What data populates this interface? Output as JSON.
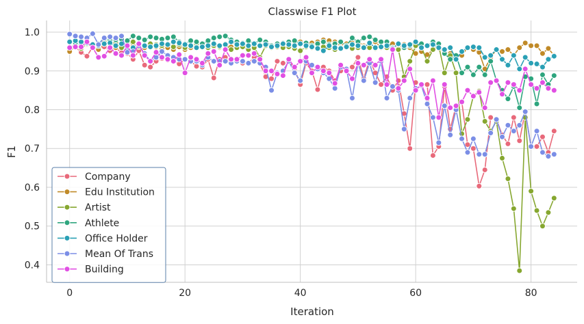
{
  "chart_data": {
    "type": "line",
    "title": "Classwise F1 Plot",
    "xlabel": "Iteration",
    "ylabel": "F1",
    "xlim": [
      -4,
      88
    ],
    "ylim": [
      0.355,
      1.03
    ],
    "xticks": [
      0,
      20,
      40,
      60,
      80
    ],
    "yticks": [
      0.4,
      0.5,
      0.6,
      0.7,
      0.8,
      0.9,
      1.0
    ],
    "grid": true,
    "legend_position": "lower-left",
    "x": [
      0,
      1,
      2,
      3,
      4,
      5,
      6,
      7,
      8,
      9,
      10,
      11,
      12,
      13,
      14,
      15,
      16,
      17,
      18,
      19,
      20,
      21,
      22,
      23,
      24,
      25,
      26,
      27,
      28,
      29,
      30,
      31,
      32,
      33,
      34,
      35,
      36,
      37,
      38,
      39,
      40,
      41,
      42,
      43,
      44,
      45,
      46,
      47,
      48,
      49,
      50,
      51,
      52,
      53,
      54,
      55,
      56,
      57,
      58,
      59,
      60,
      61,
      62,
      63,
      64,
      65,
      66,
      67,
      68,
      69,
      70,
      71,
      72,
      73,
      74,
      75,
      76,
      77,
      78,
      79,
      80,
      81,
      82,
      83,
      84
    ],
    "series": [
      {
        "name": "Company",
        "color": "#e8697a",
        "values": [
          0.958,
          0.962,
          0.948,
          0.938,
          0.962,
          0.956,
          0.962,
          0.952,
          0.96,
          0.947,
          0.945,
          0.93,
          0.952,
          0.915,
          0.91,
          0.925,
          0.932,
          0.928,
          0.925,
          0.918,
          0.93,
          0.925,
          0.912,
          0.91,
          0.93,
          0.882,
          0.93,
          0.935,
          0.92,
          0.925,
          0.92,
          0.92,
          0.935,
          0.92,
          0.885,
          0.88,
          0.925,
          0.92,
          0.925,
          0.905,
          0.865,
          0.92,
          0.9,
          0.852,
          0.91,
          0.9,
          0.875,
          0.9,
          0.905,
          0.91,
          0.935,
          0.88,
          0.93,
          0.895,
          0.865,
          0.885,
          0.85,
          0.875,
          0.79,
          0.7,
          0.87,
          0.865,
          0.865,
          0.682,
          0.705,
          0.86,
          0.75,
          0.81,
          0.82,
          0.71,
          0.7,
          0.603,
          0.645,
          0.78,
          0.775,
          0.735,
          0.712,
          0.78,
          0.72,
          0.795,
          0.705,
          0.705,
          0.73,
          0.69,
          0.745
        ]
      },
      {
        "name": "Edu Institution",
        "color": "#c08a28",
        "values": [
          0.95,
          0.965,
          0.96,
          0.968,
          0.962,
          0.955,
          0.97,
          0.965,
          0.96,
          0.968,
          0.958,
          0.965,
          0.962,
          0.96,
          0.965,
          0.962,
          0.958,
          0.96,
          0.955,
          0.962,
          0.955,
          0.96,
          0.975,
          0.965,
          0.968,
          0.962,
          0.96,
          0.97,
          0.962,
          0.965,
          0.968,
          0.962,
          0.97,
          0.965,
          0.972,
          0.96,
          0.968,
          0.965,
          0.972,
          0.968,
          0.975,
          0.968,
          0.972,
          0.975,
          0.98,
          0.978,
          0.975,
          0.968,
          0.97,
          0.972,
          0.975,
          0.965,
          0.968,
          0.975,
          0.96,
          0.965,
          0.97,
          0.962,
          0.968,
          0.96,
          0.945,
          0.95,
          0.942,
          0.955,
          0.958,
          0.95,
          0.945,
          0.935,
          0.94,
          0.96,
          0.955,
          0.948,
          0.905,
          0.935,
          0.955,
          0.95,
          0.955,
          0.94,
          0.96,
          0.972,
          0.965,
          0.965,
          0.945,
          0.958,
          0.94
        ]
      },
      {
        "name": "Artist",
        "color": "#86a730",
        "values": [
          0.96,
          0.968,
          0.958,
          0.97,
          0.962,
          0.965,
          0.975,
          0.97,
          0.972,
          0.96,
          0.968,
          0.975,
          0.97,
          0.965,
          0.97,
          0.968,
          0.965,
          0.97,
          0.962,
          0.968,
          0.96,
          0.965,
          0.97,
          0.968,
          0.96,
          0.965,
          0.962,
          0.968,
          0.955,
          0.96,
          0.962,
          0.955,
          0.96,
          0.935,
          0.965,
          0.96,
          0.962,
          0.96,
          0.962,
          0.958,
          0.952,
          0.962,
          0.96,
          0.958,
          0.962,
          0.96,
          0.955,
          0.96,
          0.962,
          0.958,
          0.96,
          0.962,
          0.96,
          0.958,
          0.962,
          0.96,
          0.955,
          0.955,
          0.885,
          0.925,
          0.965,
          0.96,
          0.925,
          0.955,
          0.965,
          0.895,
          0.94,
          0.895,
          0.738,
          0.775,
          0.835,
          0.848,
          0.77,
          0.745,
          0.77,
          0.675,
          0.622,
          0.545,
          0.385,
          0.78,
          0.59,
          0.54,
          0.5,
          0.535,
          0.572
        ]
      },
      {
        "name": "Athlete",
        "color": "#2ea57e",
        "values": [
          0.975,
          0.972,
          0.968,
          0.975,
          0.965,
          0.97,
          0.985,
          0.978,
          0.98,
          0.982,
          0.978,
          0.99,
          0.985,
          0.98,
          0.988,
          0.985,
          0.982,
          0.985,
          0.988,
          0.975,
          0.97,
          0.978,
          0.975,
          0.97,
          0.978,
          0.985,
          0.988,
          0.99,
          0.98,
          0.975,
          0.972,
          0.978,
          0.97,
          0.98,
          0.975,
          0.965,
          0.97,
          0.972,
          0.975,
          0.978,
          0.97,
          0.972,
          0.965,
          0.97,
          0.975,
          0.968,
          0.97,
          0.975,
          0.965,
          0.985,
          0.975,
          0.985,
          0.988,
          0.98,
          0.975,
          0.975,
          0.96,
          0.968,
          0.96,
          0.965,
          0.975,
          0.97,
          0.965,
          0.975,
          0.97,
          0.945,
          0.93,
          0.94,
          0.895,
          0.91,
          0.89,
          0.91,
          0.89,
          0.925,
          0.875,
          0.85,
          0.828,
          0.86,
          0.805,
          0.885,
          0.88,
          0.815,
          0.89,
          0.865,
          0.888
        ]
      },
      {
        "name": "Office Holder",
        "color": "#2aa0b5",
        "values": [
          0.975,
          0.978,
          0.975,
          0.972,
          0.968,
          0.965,
          0.97,
          0.972,
          0.965,
          0.97,
          0.955,
          0.96,
          0.97,
          0.965,
          0.962,
          0.965,
          0.97,
          0.968,
          0.975,
          0.972,
          0.968,
          0.965,
          0.96,
          0.962,
          0.965,
          0.97,
          0.965,
          0.968,
          0.975,
          0.968,
          0.97,
          0.965,
          0.97,
          0.965,
          0.968,
          0.962,
          0.965,
          0.97,
          0.968,
          0.965,
          0.97,
          0.965,
          0.962,
          0.958,
          0.952,
          0.965,
          0.96,
          0.958,
          0.962,
          0.968,
          0.965,
          0.96,
          0.972,
          0.96,
          0.962,
          0.965,
          0.958,
          0.97,
          0.965,
          0.968,
          0.975,
          0.96,
          0.965,
          0.968,
          0.96,
          0.955,
          0.96,
          0.93,
          0.95,
          0.96,
          0.962,
          0.96,
          0.935,
          0.94,
          0.955,
          0.93,
          0.915,
          0.94,
          0.905,
          0.935,
          0.92,
          0.918,
          0.91,
          0.93,
          0.938
        ]
      },
      {
        "name": "Mean Of Trans",
        "color": "#7b8ee6",
        "values": [
          0.995,
          0.99,
          0.988,
          0.985,
          0.996,
          0.968,
          0.985,
          0.988,
          0.985,
          0.99,
          0.948,
          0.95,
          0.965,
          0.945,
          0.925,
          0.935,
          0.95,
          0.94,
          0.935,
          0.93,
          0.93,
          0.925,
          0.925,
          0.915,
          0.935,
          0.925,
          0.925,
          0.925,
          0.92,
          0.925,
          0.925,
          0.92,
          0.925,
          0.92,
          0.91,
          0.85,
          0.895,
          0.9,
          0.925,
          0.895,
          0.875,
          0.925,
          0.915,
          0.905,
          0.895,
          0.88,
          0.855,
          0.91,
          0.905,
          0.83,
          0.92,
          0.875,
          0.92,
          0.87,
          0.925,
          0.83,
          0.86,
          0.85,
          0.75,
          0.83,
          0.855,
          0.862,
          0.815,
          0.78,
          0.715,
          0.81,
          0.735,
          0.8,
          0.725,
          0.69,
          0.725,
          0.685,
          0.685,
          0.74,
          0.775,
          0.73,
          0.76,
          0.745,
          0.76,
          0.795,
          0.705,
          0.745,
          0.69,
          0.68,
          0.685
        ]
      },
      {
        "name": "Building",
        "color": "#e14fe3",
        "values": [
          0.96,
          0.962,
          0.962,
          0.975,
          0.96,
          0.935,
          0.938,
          0.96,
          0.945,
          0.94,
          0.965,
          0.94,
          0.97,
          0.94,
          0.925,
          0.948,
          0.935,
          0.93,
          0.925,
          0.942,
          0.895,
          0.935,
          0.93,
          0.92,
          0.945,
          0.95,
          0.915,
          0.955,
          0.93,
          0.93,
          0.94,
          0.94,
          0.945,
          0.93,
          0.9,
          0.9,
          0.892,
          0.888,
          0.93,
          0.91,
          0.925,
          0.935,
          0.895,
          0.91,
          0.9,
          0.895,
          0.868,
          0.915,
          0.9,
          0.88,
          0.92,
          0.915,
          0.93,
          0.915,
          0.93,
          0.865,
          0.955,
          0.855,
          0.875,
          0.905,
          0.85,
          0.865,
          0.83,
          0.875,
          0.78,
          0.865,
          0.805,
          0.81,
          0.82,
          0.85,
          0.835,
          0.845,
          0.805,
          0.87,
          0.875,
          0.84,
          0.87,
          0.865,
          0.85,
          0.905,
          0.865,
          0.855,
          0.87,
          0.855,
          0.85
        ]
      }
    ]
  }
}
